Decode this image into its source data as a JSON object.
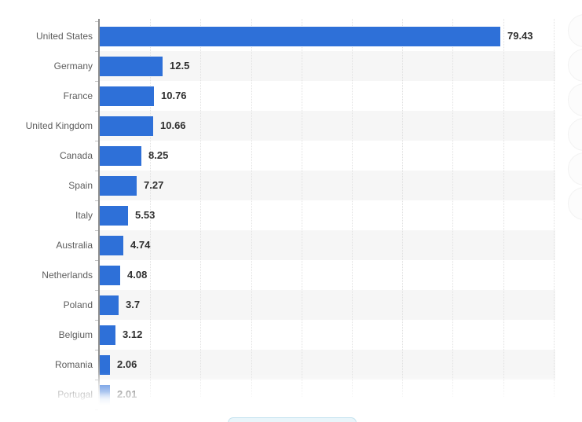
{
  "chart_data": {
    "type": "bar",
    "orientation": "horizontal",
    "title": "",
    "xlabel": "",
    "ylabel": "",
    "categories": [
      "United States",
      "Germany",
      "France",
      "United Kingdom",
      "Canada",
      "Spain",
      "Italy",
      "Australia",
      "Netherlands",
      "Poland",
      "Belgium",
      "Romania",
      "Portugal"
    ],
    "values": [
      79.43,
      12.5,
      10.76,
      10.66,
      8.25,
      7.27,
      5.53,
      4.74,
      4.08,
      3.7,
      3.12,
      2.06,
      2.01
    ],
    "value_labels": [
      "79.43",
      "12.5",
      "10.76",
      "10.66",
      "8.25",
      "7.27",
      "5.53",
      "4.74",
      "4.08",
      "3.7",
      "3.12",
      "2.06",
      "2.01"
    ],
    "xlim": [
      0,
      90
    ],
    "grid_step": 10,
    "grid": "vertical-dotted",
    "legend_position": "none",
    "bar_color": "#2e70d8",
    "band_color": "#f6f6f6",
    "grid_color": "#e0e0e0",
    "axis_color": "#8f8f8f",
    "category_label_color": "#5d5d5d",
    "value_label_color": "#2f2f2f",
    "last_row_faded": true
  },
  "overlays": {
    "bottom_button_label": "",
    "side_widget_count": 6
  }
}
